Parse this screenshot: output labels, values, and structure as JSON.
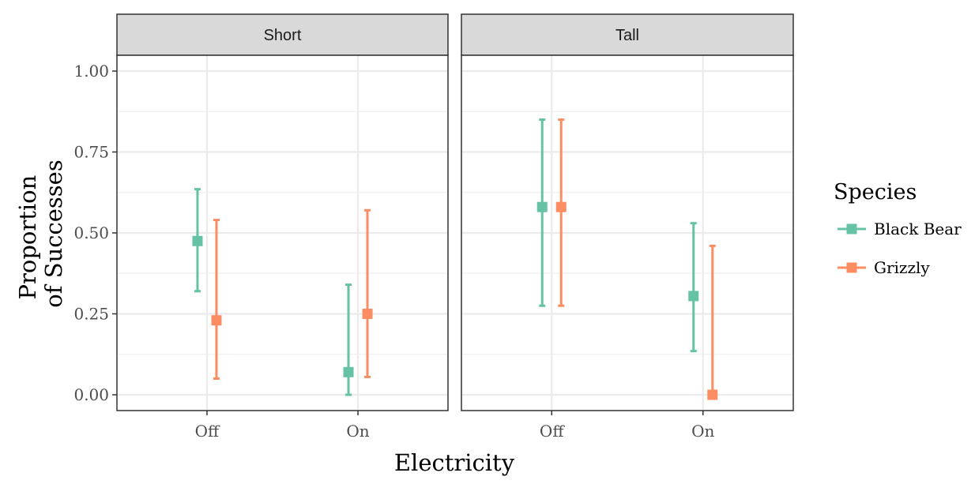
{
  "chart_data": {
    "type": "scatter",
    "subtype": "faceted point-range (error bars)",
    "facets": [
      "Short",
      "Tall"
    ],
    "categories": [
      "Off",
      "On"
    ],
    "xlabel": "Electricity",
    "ylabel_lines": [
      "Proportion",
      "of Successes"
    ],
    "ylim": [
      0,
      1
    ],
    "yticks": [
      0,
      0.25,
      0.5,
      0.75,
      1
    ],
    "ytick_labels": [
      "0.00",
      "0.25",
      "0.50",
      "0.75",
      "1.00"
    ],
    "grid": true,
    "legend": {
      "title": "Species",
      "placement": "right"
    },
    "series": [
      {
        "name": "Black Bear",
        "color": "#66c2a5",
        "points": [
          {
            "facet": "Short",
            "x": "Off",
            "y": 0.475,
            "lower": 0.32,
            "upper": 0.635
          },
          {
            "facet": "Short",
            "x": "On",
            "y": 0.07,
            "lower": 0.0,
            "upper": 0.34
          },
          {
            "facet": "Tall",
            "x": "Off",
            "y": 0.58,
            "lower": 0.275,
            "upper": 0.85
          },
          {
            "facet": "Tall",
            "x": "On",
            "y": 0.305,
            "lower": 0.135,
            "upper": 0.53
          }
        ]
      },
      {
        "name": "Grizzly",
        "color": "#fc8d62",
        "points": [
          {
            "facet": "Short",
            "x": "Off",
            "y": 0.23,
            "lower": 0.05,
            "upper": 0.54
          },
          {
            "facet": "Short",
            "x": "On",
            "y": 0.25,
            "lower": 0.055,
            "upper": 0.57
          },
          {
            "facet": "Tall",
            "x": "Off",
            "y": 0.58,
            "lower": 0.275,
            "upper": 0.85
          },
          {
            "facet": "Tall",
            "x": "On",
            "y": 0.0,
            "lower": 0.0,
            "upper": 0.46
          }
        ]
      }
    ]
  }
}
